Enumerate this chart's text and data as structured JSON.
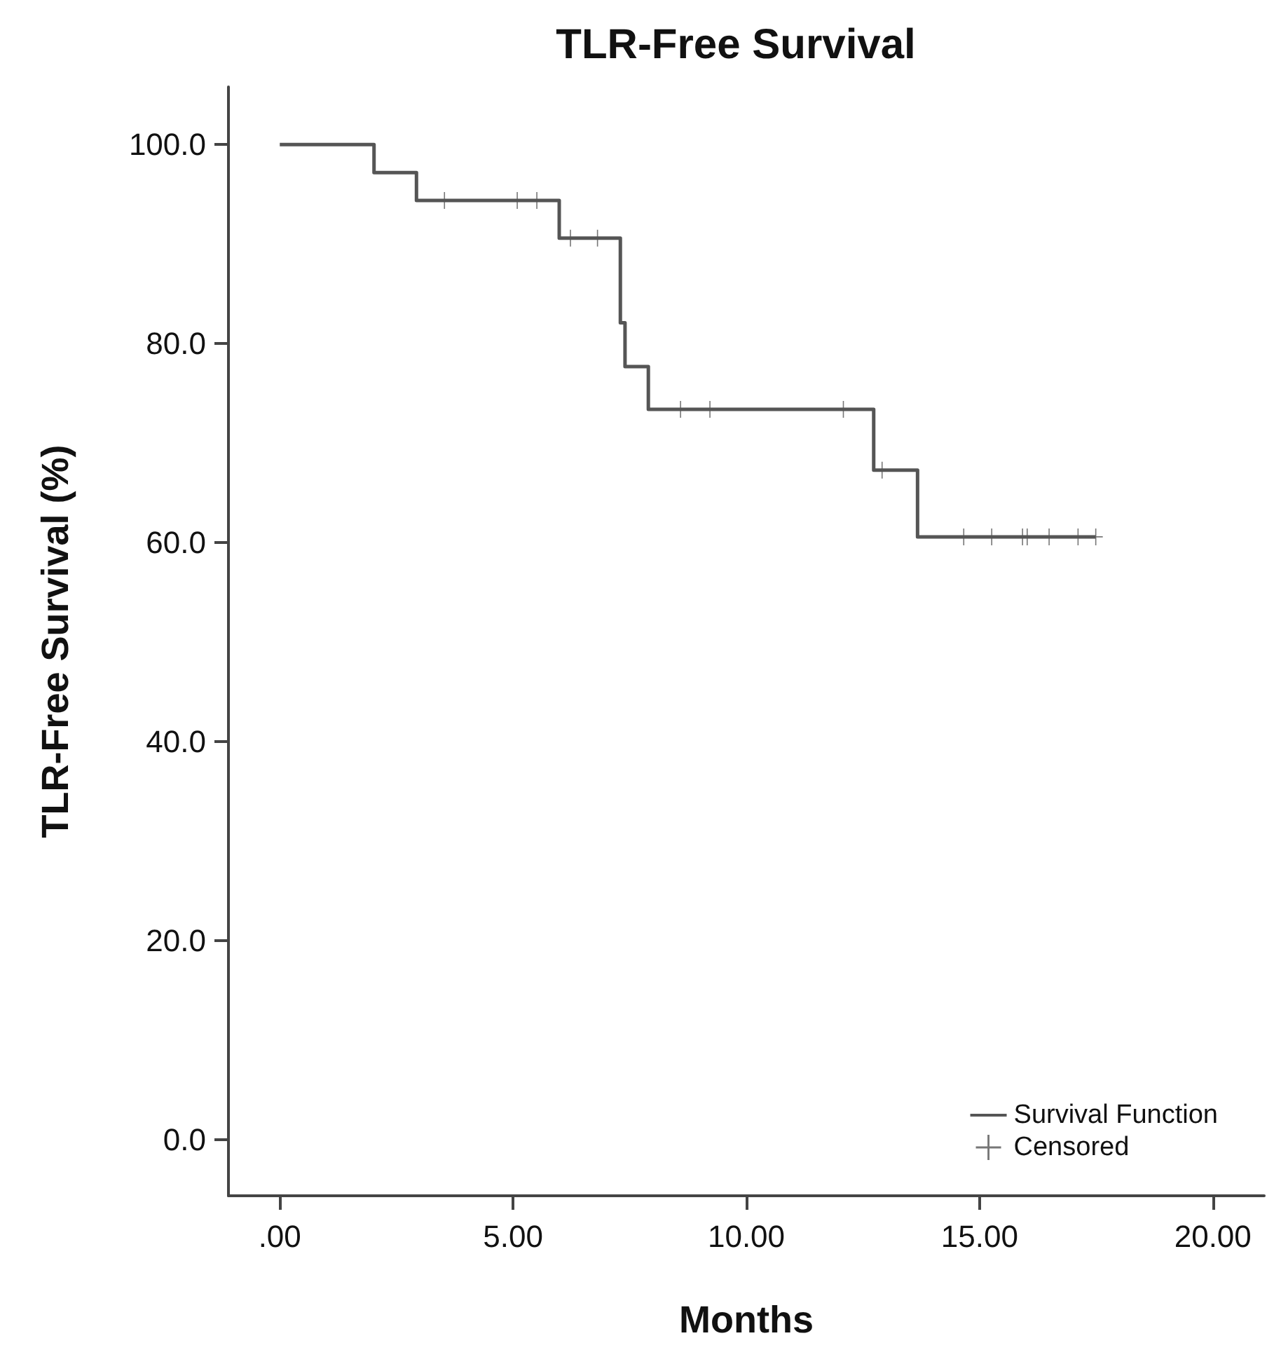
{
  "chart_data": {
    "type": "step",
    "title": "TLR-Free Survival",
    "xlabel": "Months",
    "ylabel": "TLR-Free Survival (%)",
    "xlim": [
      -1.1,
      21.1
    ],
    "xticks": [
      {
        "value": 0,
        "label": ".00"
      },
      {
        "value": 5,
        "label": "5.00"
      },
      {
        "value": 10,
        "label": "10.00"
      },
      {
        "value": 15,
        "label": "15.00"
      },
      {
        "value": 20,
        "label": "20.00"
      }
    ],
    "ylim": [
      -5.6,
      105.8
    ],
    "yticks": [
      {
        "value": 0,
        "label": "0.0"
      },
      {
        "value": 20,
        "label": "20.0"
      },
      {
        "value": 40,
        "label": "40.0"
      },
      {
        "value": 60,
        "label": "60.0"
      },
      {
        "value": 80,
        "label": "80.0"
      },
      {
        "value": 100,
        "label": "100.0"
      }
    ],
    "grid": false,
    "legend": "bottom right",
    "series": [
      {
        "name": "Survival Function",
        "marker": "none",
        "color": "#555555",
        "x": [
          0,
          2.02,
          2.93,
          5.99,
          7.3,
          7.4,
          7.9,
          12.73,
          13.67,
          17.49
        ],
        "values": [
          100,
          97.2,
          94.4,
          90.6,
          82.1,
          77.7,
          73.4,
          67.3,
          60.6,
          60.6
        ]
      },
      {
        "name": "Censored",
        "type": "scatter",
        "marker": "cross",
        "color": "#555555",
        "x": [
          3.53,
          5.09,
          5.51,
          6.23,
          6.81,
          8.59,
          9.22,
          12.08,
          12.91,
          14.66,
          15.26,
          15.92,
          16.02,
          16.49,
          17.11,
          17.49
        ],
        "values": [
          94.4,
          94.4,
          94.4,
          90.6,
          90.6,
          73.4,
          73.4,
          73.4,
          67.3,
          60.6,
          60.6,
          60.6,
          60.6,
          60.6,
          60.6,
          60.6
        ]
      }
    ]
  }
}
